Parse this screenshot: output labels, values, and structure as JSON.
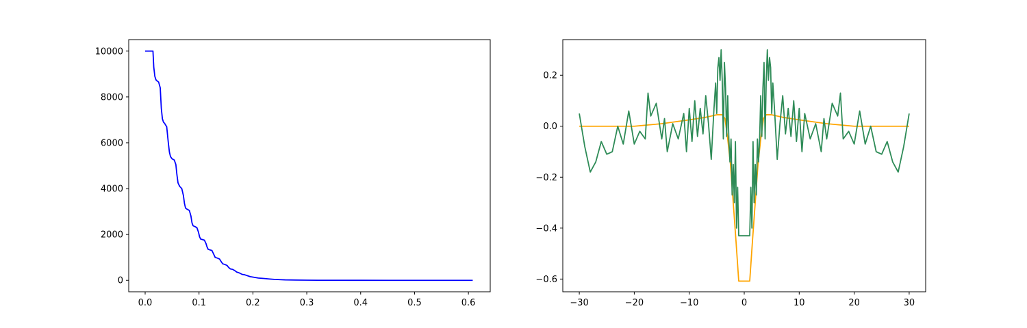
{
  "chart_data": [
    {
      "type": "line",
      "title": "",
      "xlabel": "",
      "ylabel": "",
      "xlim": [
        -0.0305,
        0.6405
      ],
      "ylim": [
        -500,
        10500
      ],
      "xticks": [
        0.0,
        0.1,
        0.2,
        0.3,
        0.4,
        0.5,
        0.6
      ],
      "xtick_labels": [
        "0.0",
        "0.1",
        "0.2",
        "0.3",
        "0.4",
        "0.5",
        "0.6"
      ],
      "yticks": [
        0,
        2000,
        4000,
        6000,
        8000,
        10000
      ],
      "ytick_labels": [
        "0",
        "2000",
        "4000",
        "6000",
        "8000",
        "10000"
      ],
      "grid": false,
      "series": [
        {
          "color": "#0000ff",
          "x": [
            0.0,
            0.004,
            0.008,
            0.012,
            0.0145,
            0.016,
            0.018,
            0.02,
            0.022,
            0.025,
            0.028,
            0.03,
            0.032,
            0.034,
            0.036,
            0.04,
            0.043,
            0.045,
            0.047,
            0.05,
            0.054,
            0.057,
            0.059,
            0.061,
            0.064,
            0.068,
            0.071,
            0.073,
            0.075,
            0.078,
            0.082,
            0.085,
            0.087,
            0.089,
            0.092,
            0.096,
            0.099,
            0.101,
            0.103,
            0.106,
            0.11,
            0.113,
            0.115,
            0.117,
            0.12,
            0.124,
            0.127,
            0.13,
            0.134,
            0.138,
            0.141,
            0.144,
            0.148,
            0.152,
            0.155,
            0.158,
            0.162,
            0.166,
            0.17,
            0.175,
            0.18,
            0.185,
            0.19,
            0.195,
            0.2,
            0.21,
            0.22,
            0.23,
            0.24,
            0.25,
            0.26,
            0.28,
            0.3,
            0.32,
            0.35,
            0.4,
            0.45,
            0.5,
            0.55,
            0.608
          ],
          "y": [
            10000,
            10000,
            10000,
            10000,
            10000,
            9300,
            8900,
            8750,
            8700,
            8650,
            8400,
            7500,
            7050,
            6900,
            6850,
            6700,
            6000,
            5600,
            5400,
            5300,
            5250,
            5050,
            4600,
            4250,
            4100,
            4000,
            3700,
            3350,
            3150,
            3100,
            3050,
            2800,
            2500,
            2380,
            2350,
            2300,
            2100,
            1900,
            1800,
            1780,
            1750,
            1600,
            1450,
            1350,
            1330,
            1300,
            1150,
            1000,
            970,
            930,
            820,
            720,
            690,
            650,
            560,
            500,
            480,
            430,
            360,
            320,
            260,
            240,
            200,
            160,
            140,
            100,
            80,
            60,
            40,
            30,
            20,
            12,
            7,
            4,
            2,
            1,
            0,
            0,
            0,
            0
          ]
        }
      ]
    },
    {
      "type": "line",
      "title": "",
      "xlabel": "",
      "ylabel": "",
      "xlim": [
        -33,
        33
      ],
      "ylim": [
        -0.65,
        0.34
      ],
      "xticks": [
        -30,
        -20,
        -10,
        0,
        10,
        20,
        30
      ],
      "xtick_labels": [
        "−30",
        "−20",
        "−10",
        "0",
        "10",
        "20",
        "30"
      ],
      "yticks": [
        -0.6,
        -0.4,
        -0.2,
        0.0,
        0.2
      ],
      "ytick_labels": [
        "−0.6",
        "−0.4",
        "−0.2",
        "0.0",
        "0.2"
      ],
      "grid": false,
      "series": [
        {
          "color": "#ffa500",
          "x": [
            -30,
            -25,
            -20,
            -15,
            -10,
            -7,
            -5,
            -4,
            -3.5,
            -3,
            -2.5,
            -2,
            -1.5,
            -1,
            1,
            1.5,
            2,
            2.5,
            3,
            3.5,
            4,
            5,
            7,
            10,
            15,
            20,
            25,
            30
          ],
          "y": [
            0,
            0,
            0.0,
            0.01,
            0.025,
            0.035,
            0.045,
            0.045,
            0.03,
            -0.05,
            -0.15,
            -0.3,
            -0.45,
            -0.608,
            -0.608,
            -0.45,
            -0.3,
            -0.15,
            -0.05,
            0.03,
            0.045,
            0.045,
            0.035,
            0.025,
            0.01,
            0.0,
            0,
            0
          ]
        },
        {
          "color": "#2e8b57",
          "x": [
            -30,
            -29,
            -28,
            -27,
            -26,
            -25,
            -24,
            -23,
            -22,
            -21,
            -20,
            -19,
            -18,
            -17.5,
            -17,
            -16,
            -15,
            -14.5,
            -14,
            -13,
            -12,
            -11,
            -10.5,
            -10,
            -9.5,
            -9,
            -8.5,
            -8,
            -7.5,
            -7,
            -6.5,
            -6,
            -5.5,
            -5.2,
            -5,
            -4.8,
            -4.6,
            -4.4,
            -4.2,
            -4,
            -3.8,
            -3.6,
            -3.4,
            -3.2,
            -3,
            -2.8,
            -2.6,
            -2.4,
            -2.2,
            -2,
            -1.8,
            -1.6,
            -1.4,
            -1.2,
            -1,
            1,
            1.2,
            1.4,
            1.6,
            1.8,
            2,
            2.2,
            2.4,
            2.6,
            2.8,
            3,
            3.2,
            3.4,
            3.6,
            3.8,
            4,
            4.2,
            4.4,
            4.6,
            4.8,
            5,
            5.2,
            5.5,
            6,
            6.5,
            7,
            7.5,
            8,
            8.5,
            9,
            9.5,
            10,
            10.5,
            11,
            12,
            13,
            14,
            14.5,
            15,
            16,
            17,
            17.5,
            18,
            19,
            20,
            21,
            22,
            23,
            24,
            25,
            26,
            27,
            28,
            29,
            30
          ],
          "y": [
            0.05,
            -0.08,
            -0.18,
            -0.14,
            -0.06,
            -0.11,
            -0.1,
            0.0,
            -0.07,
            0.06,
            -0.07,
            -0.02,
            -0.05,
            0.13,
            0.04,
            0.09,
            -0.05,
            0.03,
            -0.1,
            0.01,
            -0.05,
            0.05,
            -0.1,
            0.07,
            -0.06,
            0.1,
            -0.04,
            0.07,
            -0.03,
            0.12,
            0.01,
            -0.13,
            0.07,
            0.17,
            0.05,
            0.23,
            0.27,
            0.18,
            0.3,
            0.18,
            -0.05,
            0.25,
            0.15,
            -0.04,
            0.12,
            -0.05,
            -0.14,
            -0.05,
            -0.27,
            -0.15,
            -0.3,
            -0.06,
            -0.4,
            -0.24,
            -0.43,
            -0.43,
            -0.24,
            -0.4,
            -0.06,
            -0.3,
            -0.15,
            -0.27,
            -0.05,
            -0.14,
            -0.05,
            0.12,
            -0.04,
            0.15,
            0.25,
            -0.05,
            0.18,
            0.3,
            0.18,
            0.27,
            0.23,
            0.05,
            0.17,
            0.07,
            -0.13,
            0.01,
            0.12,
            -0.03,
            0.07,
            -0.04,
            0.1,
            -0.06,
            0.07,
            -0.1,
            0.05,
            -0.05,
            0.01,
            -0.1,
            0.03,
            -0.05,
            0.09,
            0.04,
            0.13,
            -0.05,
            -0.02,
            -0.07,
            0.06,
            -0.07,
            0.0,
            -0.1,
            -0.11,
            -0.06,
            -0.14,
            -0.18,
            -0.08,
            0.05
          ]
        }
      ]
    }
  ]
}
